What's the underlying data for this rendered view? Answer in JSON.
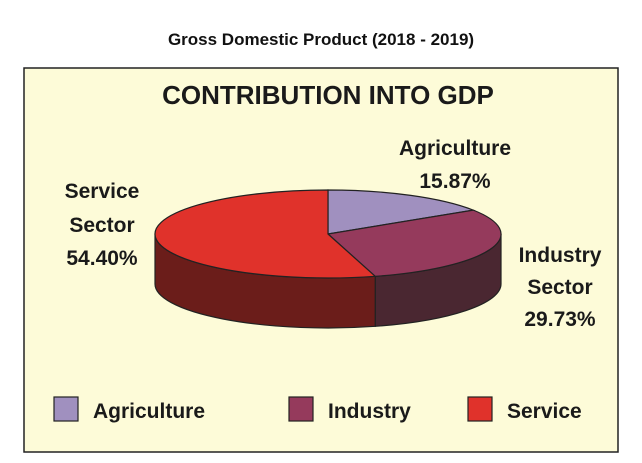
{
  "title": "Gross Domestic Product (2018 - 2019)",
  "chart_data": {
    "type": "pie",
    "style": "3d",
    "title": "CONTRIBUTION INTO GDP",
    "categories": [
      "Agriculture",
      "Industry",
      "Service"
    ],
    "values": [
      15.87,
      29.73,
      54.4
    ],
    "data_labels": [
      [
        "Agriculture",
        "15.87%"
      ],
      [
        "Industry",
        "Sector",
        "29.73%"
      ],
      [
        "Service",
        "Sector",
        "54.40%"
      ]
    ],
    "colors": [
      "#a090bf",
      "#953a5c",
      "#e0322b"
    ],
    "side_colors": [
      "#6e6090",
      "#4a2731",
      "#6b1d1a"
    ],
    "background": "#fdfbd8",
    "legend": {
      "position": "bottom",
      "entries": [
        "Agriculture",
        "Industry",
        "Service"
      ]
    }
  }
}
